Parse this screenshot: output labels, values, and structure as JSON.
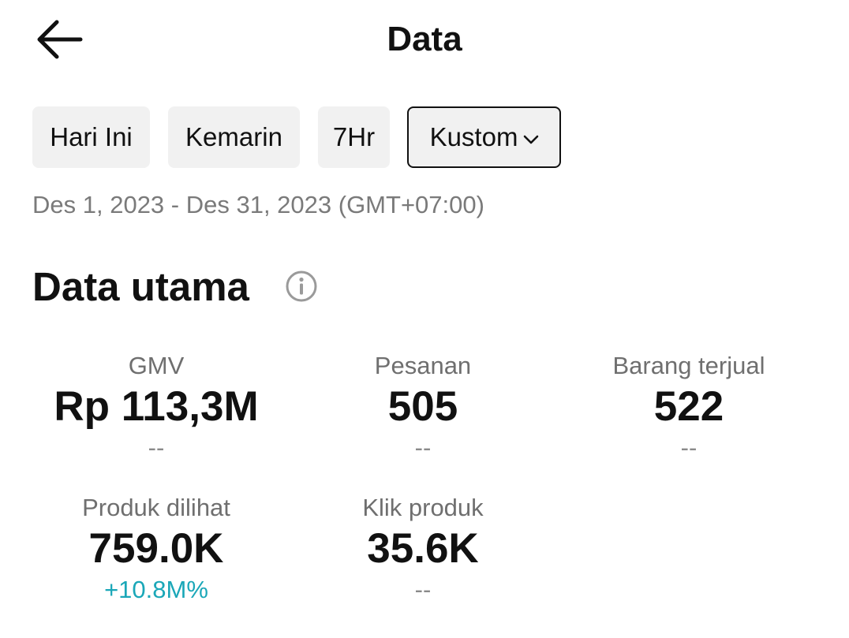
{
  "header": {
    "title": "Data",
    "back_icon": "arrow-left-icon"
  },
  "filters": {
    "today": "Hari Ini",
    "yesterday": "Kemarin",
    "seven_days": "7Hr",
    "custom": "Kustom",
    "selected": "Kustom"
  },
  "date_range": "Des 1, 2023 - Des 31, 2023 (GMT+07:00)",
  "section": {
    "title": "Data utama",
    "info_icon": "info-icon"
  },
  "metrics": [
    {
      "label": "GMV",
      "value": "Rp 113,3M",
      "change": "--"
    },
    {
      "label": "Pesanan",
      "value": "505",
      "change": "--"
    },
    {
      "label": "Barang terjual",
      "value": "522",
      "change": "--"
    },
    {
      "label": "Produk dilihat",
      "value": "759.0K",
      "change": "+10.8M%"
    },
    {
      "label": "Klik produk",
      "value": "35.6K",
      "change": "--"
    }
  ],
  "colors": {
    "text": "#111111",
    "muted": "#7a7a7a",
    "chip_bg": "#f1f1f1",
    "positive": "#1aa7b8"
  }
}
